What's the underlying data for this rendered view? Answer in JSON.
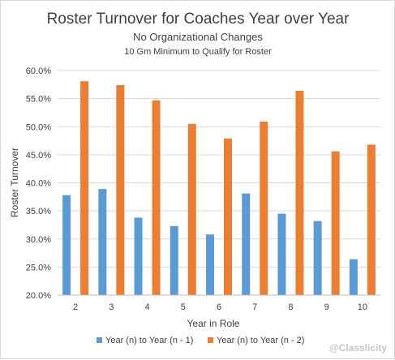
{
  "colors": {
    "series1": "#5b9bd5",
    "series2": "#ed7d31",
    "grid": "#d9d9d9",
    "text": "#404040"
  },
  "watermark": "@Classlicity",
  "chart_data": {
    "type": "bar",
    "title": "Roster Turnover for Coaches Year over Year",
    "subtitle": "No Organizational Changes",
    "subtitle2": "10 Gm Minimum to Qualify for Roster",
    "xlabel": "Year in Role",
    "ylabel": "Roster Turnover",
    "ylim": [
      0.2,
      0.6
    ],
    "yticks": [
      0.2,
      0.25,
      0.3,
      0.35,
      0.4,
      0.45,
      0.5,
      0.55,
      0.6
    ],
    "ytick_labels": [
      "20.0%",
      "25.0%",
      "30.0%",
      "35.0%",
      "40.0%",
      "45.0%",
      "50.0%",
      "55.0%",
      "60.0%"
    ],
    "categories": [
      "2",
      "3",
      "4",
      "5",
      "6",
      "7",
      "8",
      "9",
      "10"
    ],
    "grid": true,
    "legend": "bottom",
    "series": [
      {
        "name": "Year (n) to Year (n - 1)",
        "values": [
          0.378,
          0.389,
          0.338,
          0.323,
          0.308,
          0.381,
          0.345,
          0.332,
          0.264
        ]
      },
      {
        "name": "Year (n) to Year (n - 2)",
        "values": [
          0.581,
          0.574,
          0.547,
          0.505,
          0.479,
          0.509,
          0.564,
          0.456,
          0.468
        ]
      }
    ]
  }
}
